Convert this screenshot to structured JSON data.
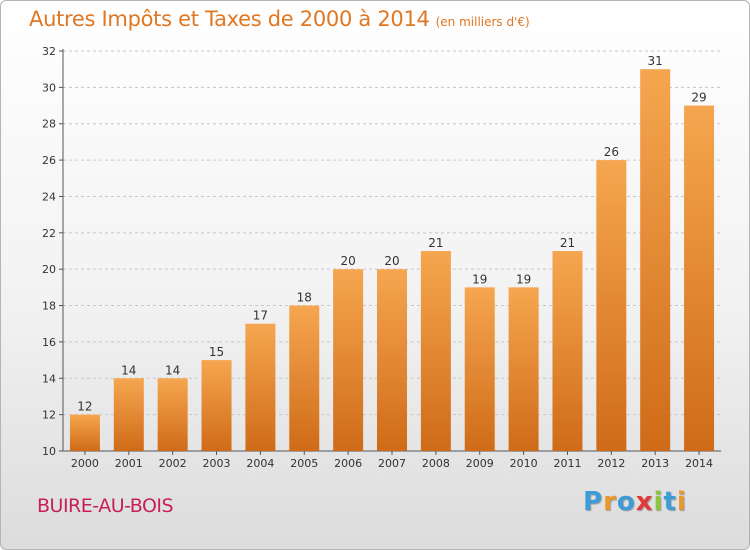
{
  "header": {
    "title": "Autres Impôts et Taxes de 2000 à 2014",
    "unit": "(en milliers d'€)"
  },
  "footer": {
    "commune": "BUIRE-AU-BOIS",
    "logo_text": "Proxiti",
    "logo_letters": [
      {
        "char": "P",
        "color": "#3d9bd8"
      },
      {
        "char": "r",
        "color": "#e9982b"
      },
      {
        "char": "o",
        "color": "#3d9bd8"
      },
      {
        "char": "x",
        "color": "#e23a3a"
      },
      {
        "char": "i",
        "color": "#8cc63f"
      },
      {
        "char": "t",
        "color": "#3d9bd8"
      },
      {
        "char": "i",
        "color": "#e9982b"
      }
    ]
  },
  "chart_data": {
    "type": "bar",
    "categories": [
      "2000",
      "2001",
      "2002",
      "2003",
      "2004",
      "2005",
      "2006",
      "2007",
      "2008",
      "2009",
      "2010",
      "2011",
      "2012",
      "2013",
      "2014"
    ],
    "values": [
      12,
      14,
      14,
      15,
      17,
      18,
      20,
      20,
      21,
      19,
      19,
      21,
      26,
      31,
      29
    ],
    "data_labels": [
      "12",
      "14",
      "14",
      "15",
      "17",
      "18",
      "20",
      "20",
      "21",
      "19",
      "19",
      "21",
      "26",
      "31",
      "29"
    ],
    "title": "Autres Impôts et Taxes de 2000 à 2014",
    "xlabel": "",
    "ylabel": "",
    "ylim": [
      10,
      32
    ],
    "yticks": [
      10,
      12,
      14,
      16,
      18,
      20,
      22,
      24,
      26,
      28,
      30,
      32
    ],
    "grid": "horizontal dashed",
    "bar_color_top": "#f6a650",
    "bar_color_bottom": "#cf6b18",
    "grid_color": "#c8c8c8",
    "axis_color": "#555555"
  }
}
